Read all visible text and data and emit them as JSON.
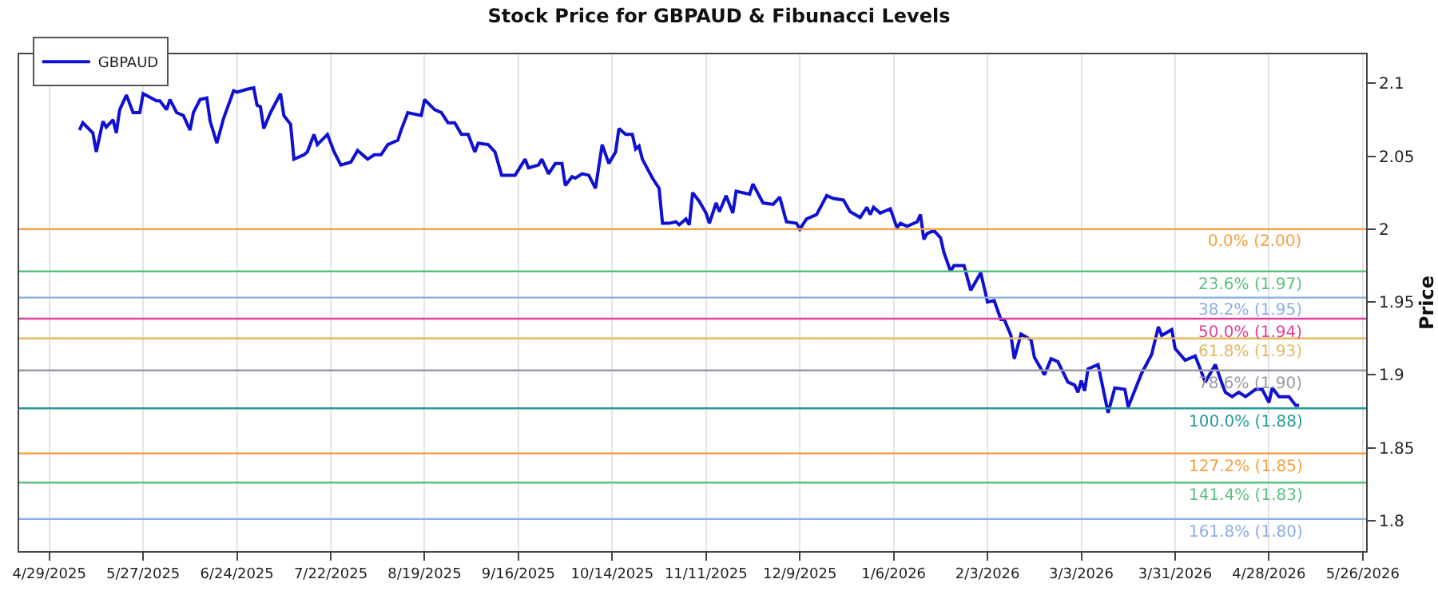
{
  "chart_data": {
    "type": "line",
    "title": "Stock Price for GBPAUD & Fibunacci Levels",
    "ylabel": "Price",
    "x": [
      "2025-05-08",
      "2025-05-09",
      "2025-05-12",
      "2025-05-13",
      "2025-05-15",
      "2025-05-16",
      "2025-05-18",
      "2025-05-19",
      "2025-05-20",
      "2025-05-22",
      "2025-05-24",
      "2025-05-26",
      "2025-05-27",
      "2025-05-31",
      "2025-06-01",
      "2025-06-03",
      "2025-06-04",
      "2025-06-06",
      "2025-06-08",
      "2025-06-10",
      "2025-06-11",
      "2025-06-13",
      "2025-06-15",
      "2025-06-16",
      "2025-06-18",
      "2025-06-20",
      "2025-06-23",
      "2025-06-24",
      "2025-06-27",
      "2025-06-29",
      "2025-06-30",
      "2025-07-01",
      "2025-07-02",
      "2025-07-04",
      "2025-07-07",
      "2025-07-08",
      "2025-07-10",
      "2025-07-11",
      "2025-07-14",
      "2025-07-15",
      "2025-07-17",
      "2025-07-18",
      "2025-07-21",
      "2025-07-23",
      "2025-07-25",
      "2025-07-28",
      "2025-07-30",
      "2025-08-02",
      "2025-08-04",
      "2025-08-06",
      "2025-08-08",
      "2025-08-11",
      "2025-08-12",
      "2025-08-14",
      "2025-08-18",
      "2025-08-19",
      "2025-08-22",
      "2025-08-24",
      "2025-08-26",
      "2025-08-28",
      "2025-08-30",
      "2025-09-01",
      "2025-09-03",
      "2025-09-04",
      "2025-09-07",
      "2025-09-09",
      "2025-09-11",
      "2025-09-15",
      "2025-09-18",
      "2025-09-19",
      "2025-09-22",
      "2025-09-23",
      "2025-09-25",
      "2025-09-27",
      "2025-09-29",
      "2025-09-30",
      "2025-10-02",
      "2025-10-03",
      "2025-10-05",
      "2025-10-07",
      "2025-10-09",
      "2025-10-11",
      "2025-10-13",
      "2025-10-15",
      "2025-10-16",
      "2025-10-18",
      "2025-10-20",
      "2025-10-21",
      "2025-10-22",
      "2025-10-23",
      "2025-10-26",
      "2025-10-28",
      "2025-10-29",
      "2025-10-31",
      "2025-11-02",
      "2025-11-03",
      "2025-11-05",
      "2025-11-06",
      "2025-11-07",
      "2025-11-09",
      "2025-11-11",
      "2025-11-12",
      "2025-11-14",
      "2025-11-15",
      "2025-11-17",
      "2025-11-19",
      "2025-11-20",
      "2025-11-24",
      "2025-11-25",
      "2025-11-28",
      "2025-12-01",
      "2025-12-03",
      "2025-12-05",
      "2025-12-08",
      "2025-12-09",
      "2025-12-11",
      "2025-12-14",
      "2025-12-17",
      "2025-12-19",
      "2025-12-22",
      "2025-12-24",
      "2025-12-27",
      "2025-12-29",
      "2025-12-30",
      "2025-12-31",
      "2026-01-02",
      "2026-01-05",
      "2026-01-07",
      "2026-01-08",
      "2026-01-10",
      "2026-01-13",
      "2026-01-14",
      "2026-01-15",
      "2026-01-16",
      "2026-01-18",
      "2026-01-20",
      "2026-01-21",
      "2026-01-23",
      "2026-01-24",
      "2026-01-27",
      "2026-01-29",
      "2026-02-01",
      "2026-02-03",
      "2026-02-05",
      "2026-02-07",
      "2026-02-08",
      "2026-02-10",
      "2026-02-11",
      "2026-02-13",
      "2026-02-16",
      "2026-02-17",
      "2026-02-20",
      "2026-02-22",
      "2026-02-24",
      "2026-02-27",
      "2026-03-01",
      "2026-03-02",
      "2026-03-03",
      "2026-03-04",
      "2026-03-05",
      "2026-03-08",
      "2026-03-11",
      "2026-03-13",
      "2026-03-16",
      "2026-03-17",
      "2026-03-21",
      "2026-03-24",
      "2026-03-26",
      "2026-03-27",
      "2026-03-30",
      "2026-03-31",
      "2026-04-03",
      "2026-04-06",
      "2026-04-09",
      "2026-04-12",
      "2026-04-14",
      "2026-04-15",
      "2026-04-17",
      "2026-04-19",
      "2026-04-21",
      "2026-04-24",
      "2026-04-26",
      "2026-04-28",
      "2026-04-29",
      "2026-05-01",
      "2026-05-04",
      "2026-05-06",
      "2026-05-07"
    ],
    "series": [
      {
        "name": "GBPAUD",
        "color": "#1010d0",
        "values": [
          2.068,
          2.073,
          2.066,
          2.053,
          2.074,
          2.07,
          2.075,
          2.066,
          2.082,
          2.092,
          2.08,
          2.08,
          2.093,
          2.088,
          2.088,
          2.082,
          2.089,
          2.08,
          2.078,
          2.068,
          2.08,
          2.089,
          2.09,
          2.074,
          2.059,
          2.076,
          2.095,
          2.094,
          2.096,
          2.097,
          2.085,
          2.084,
          2.069,
          2.08,
          2.093,
          2.078,
          2.072,
          2.048,
          2.051,
          2.053,
          2.065,
          2.058,
          2.065,
          2.053,
          2.044,
          2.046,
          2.054,
          2.048,
          2.051,
          2.051,
          2.058,
          2.061,
          2.068,
          2.08,
          2.078,
          2.089,
          2.082,
          2.08,
          2.073,
          2.073,
          2.065,
          2.065,
          2.053,
          2.059,
          2.058,
          2.053,
          2.037,
          2.037,
          2.048,
          2.042,
          2.044,
          2.048,
          2.038,
          2.045,
          2.045,
          2.03,
          2.036,
          2.035,
          2.038,
          2.037,
          2.028,
          2.058,
          2.045,
          2.053,
          2.069,
          2.065,
          2.065,
          2.055,
          2.057,
          2.048,
          2.035,
          2.028,
          2.004,
          2.004,
          2.005,
          2.003,
          2.007,
          2.003,
          2.025,
          2.019,
          2.011,
          2.004,
          2.018,
          2.012,
          2.023,
          2.011,
          2.026,
          2.024,
          2.031,
          2.018,
          2.017,
          2.022,
          2.005,
          2.004,
          2.0,
          2.007,
          2.01,
          2.023,
          2.021,
          2.02,
          2.012,
          2.008,
          2.015,
          2.01,
          2.015,
          2.011,
          2.014,
          2.001,
          2.004,
          2.002,
          2.005,
          2.01,
          1.993,
          1.997,
          1.999,
          1.994,
          1.984,
          1.971,
          1.975,
          1.975,
          1.958,
          1.97,
          1.95,
          1.951,
          1.938,
          1.938,
          1.927,
          1.911,
          1.928,
          1.924,
          1.912,
          1.9,
          1.911,
          1.909,
          1.895,
          1.893,
          1.888,
          1.896,
          1.889,
          1.904,
          1.907,
          1.874,
          1.891,
          1.89,
          1.878,
          1.901,
          1.914,
          1.933,
          1.927,
          1.931,
          1.918,
          1.91,
          1.913,
          1.895,
          1.907,
          1.894,
          1.888,
          1.885,
          1.888,
          1.885,
          1.89,
          1.89,
          1.881,
          1.891,
          1.885,
          1.885,
          1.879,
          1.879
        ]
      }
    ],
    "xlim": [
      "2025-04-20",
      "2026-05-27"
    ],
    "xticks": [
      {
        "value": "2025-04-29",
        "label": "4/29/2025"
      },
      {
        "value": "2025-05-27",
        "label": "5/27/2025"
      },
      {
        "value": "2025-06-24",
        "label": "6/24/2025"
      },
      {
        "value": "2025-07-22",
        "label": "7/22/2025"
      },
      {
        "value": "2025-08-19",
        "label": "8/19/2025"
      },
      {
        "value": "2025-09-16",
        "label": "9/16/2025"
      },
      {
        "value": "2025-10-14",
        "label": "10/14/2025"
      },
      {
        "value": "2025-11-11",
        "label": "11/11/2025"
      },
      {
        "value": "2025-12-09",
        "label": "12/9/2025"
      },
      {
        "value": "2026-01-06",
        "label": "1/6/2026"
      },
      {
        "value": "2026-02-03",
        "label": "2/3/2026"
      },
      {
        "value": "2026-03-03",
        "label": "3/3/2026"
      },
      {
        "value": "2026-03-31",
        "label": "3/31/2026"
      },
      {
        "value": "2026-04-28",
        "label": "4/28/2026"
      },
      {
        "value": "2026-05-26",
        "label": "5/26/2026"
      }
    ],
    "ylim": [
      1.779,
      2.12
    ],
    "yticks": [
      1.8,
      1.85,
      1.9,
      1.95,
      2,
      2.05,
      2.1
    ],
    "ref_lines": [
      {
        "axis": "y",
        "value": 2.0,
        "label": "0.0% (2.00)",
        "color": "#f5a040"
      },
      {
        "axis": "y",
        "value": 1.971,
        "label": "23.6% (1.97)",
        "color": "#5cbf80"
      },
      {
        "axis": "y",
        "value": 1.953,
        "label": "38.2% (1.95)",
        "color": "#8aaee6"
      },
      {
        "axis": "y",
        "value": 1.9385,
        "label": "50.0% (1.94)",
        "color": "#e0409a"
      },
      {
        "axis": "y",
        "value": 1.925,
        "label": "61.8% (1.93)",
        "color": "#e6b860"
      },
      {
        "axis": "y",
        "value": 1.903,
        "label": "78.6% (1.90)",
        "color": "#9a9aa6"
      },
      {
        "axis": "y",
        "value": 1.877,
        "label": "100.0% (1.88)",
        "color": "#269a9a"
      },
      {
        "axis": "y",
        "value": 1.846,
        "label": "127.2% (1.85)",
        "color": "#f5a040"
      },
      {
        "axis": "y",
        "value": 1.826,
        "label": "141.4% (1.83)",
        "color": "#5cbf80"
      },
      {
        "axis": "y",
        "value": 1.801,
        "label": "161.8% (1.80)",
        "color": "#8aaee6"
      }
    ],
    "grid": "x",
    "legend": "top left"
  }
}
